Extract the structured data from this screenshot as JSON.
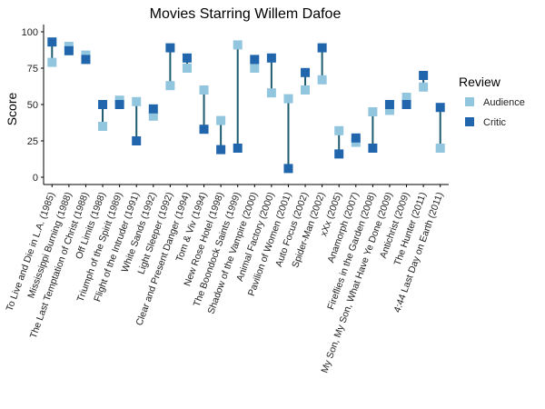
{
  "chart_data": {
    "type": "dumbbell",
    "title": "Movies Starring Willem Dafoe",
    "y_label": "Score",
    "legend_title": "Review",
    "legend_position": "right",
    "segment_color": "#1d5c70",
    "categories": [
      "To Live and Die in L.A. (1985)",
      "Mississippi Burning (1988)",
      "The Last Temptation of Christ (1988)",
      "Off Limits (1988)",
      "Triumph of the Spirit (1989)",
      "Flight of the Intruder (1991)",
      "White Sands (1992)",
      "Light Sleeper (1992)",
      "Clear and Present Danger (1994)",
      "Tom & Viv (1994)",
      "New Rose Hotel (1998)",
      "The Boondock Saints (1999)",
      "Shadow of the Vampire (2000)",
      "Animal Factory (2000)",
      "Pavilion of Women (2001)",
      "Auto Focus (2002)",
      "Spider-Man (2002)",
      "xXx (2005)",
      "Anamorph (2007)",
      "Fireflies in the Garden (2008)",
      "My Son, My Son, What Have Ye Done (2009)",
      "Antichrist (2009)",
      "The Hunter (2011)",
      "4:44 Last Day on Earth (2011)"
    ],
    "series": [
      {
        "name": "Audience",
        "color": "#92c5de",
        "values": [
          79,
          90,
          84,
          35,
          53,
          52,
          42,
          63,
          75,
          60,
          39,
          91,
          75,
          58,
          54,
          60,
          67,
          32,
          24,
          45,
          46,
          55,
          62,
          20
        ]
      },
      {
        "name": "Critic",
        "color": "#2166ac",
        "values": [
          93,
          87,
          81,
          50,
          50,
          25,
          47,
          89,
          82,
          33,
          19,
          20,
          81,
          82,
          6,
          72,
          89,
          16,
          27,
          20,
          50,
          50,
          70,
          48
        ]
      }
    ],
    "ylim": [
      -5,
      105
    ],
    "yticks": [
      0,
      25,
      50,
      75,
      100
    ]
  }
}
